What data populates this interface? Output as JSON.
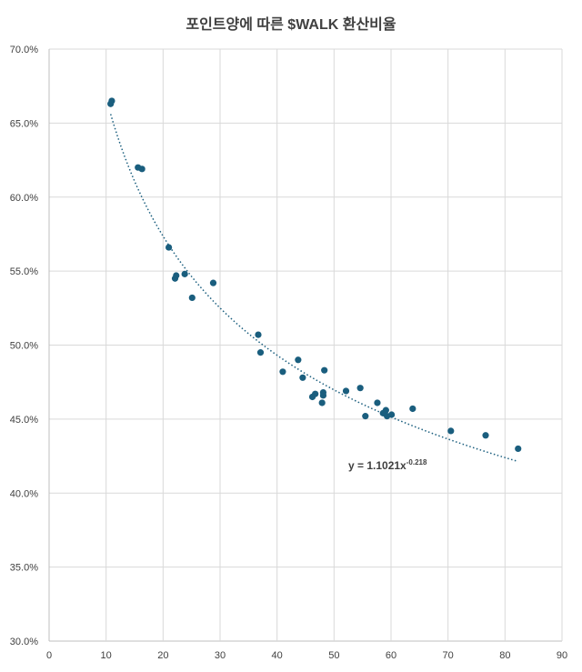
{
  "chart_data": {
    "type": "scatter",
    "title": "포인트양에 따른 $WALK 환산비율",
    "xlim": [
      0,
      90
    ],
    "ylim": [
      30,
      70
    ],
    "x_ticks": [
      0,
      10,
      20,
      30,
      40,
      50,
      60,
      70,
      80,
      90
    ],
    "y_ticks": [
      30,
      35,
      40,
      45,
      50,
      55,
      60,
      65,
      70
    ],
    "y_tick_format": "percent_1dp",
    "grid": true,
    "legend": "none",
    "colors": {
      "points": "#1a5e7e",
      "trendline": "#1a5e7e",
      "grid": "#d9d9d9",
      "text": "#404040"
    },
    "points": [
      {
        "x": 10.8,
        "y": 66.3
      },
      {
        "x": 11.0,
        "y": 66.5
      },
      {
        "x": 15.6,
        "y": 62.0
      },
      {
        "x": 16.3,
        "y": 61.9
      },
      {
        "x": 21.0,
        "y": 56.6
      },
      {
        "x": 22.1,
        "y": 54.5
      },
      {
        "x": 22.3,
        "y": 54.7
      },
      {
        "x": 23.8,
        "y": 54.8
      },
      {
        "x": 25.1,
        "y": 53.2
      },
      {
        "x": 28.8,
        "y": 54.2
      },
      {
        "x": 36.7,
        "y": 50.7
      },
      {
        "x": 37.1,
        "y": 49.5
      },
      {
        "x": 41.0,
        "y": 48.2
      },
      {
        "x": 43.7,
        "y": 49.0
      },
      {
        "x": 44.5,
        "y": 47.8
      },
      {
        "x": 46.2,
        "y": 46.5
      },
      {
        "x": 46.7,
        "y": 46.7
      },
      {
        "x": 47.9,
        "y": 46.1
      },
      {
        "x": 48.1,
        "y": 46.6
      },
      {
        "x": 48.1,
        "y": 46.8
      },
      {
        "x": 48.3,
        "y": 48.3
      },
      {
        "x": 52.1,
        "y": 46.9
      },
      {
        "x": 54.6,
        "y": 47.1
      },
      {
        "x": 55.5,
        "y": 45.2
      },
      {
        "x": 57.6,
        "y": 46.1
      },
      {
        "x": 58.6,
        "y": 45.4
      },
      {
        "x": 59.1,
        "y": 45.6
      },
      {
        "x": 59.3,
        "y": 45.2
      },
      {
        "x": 60.1,
        "y": 45.3
      },
      {
        "x": 63.8,
        "y": 45.7
      },
      {
        "x": 70.5,
        "y": 44.2
      },
      {
        "x": 76.6,
        "y": 43.9
      },
      {
        "x": 82.3,
        "y": 43.0
      }
    ],
    "trendline": {
      "type": "power",
      "a": 1.1021,
      "b": -0.218,
      "x_range": [
        10.8,
        82.3
      ],
      "label_main": "y = 1.1021x",
      "label_exp": "-0.218"
    }
  }
}
